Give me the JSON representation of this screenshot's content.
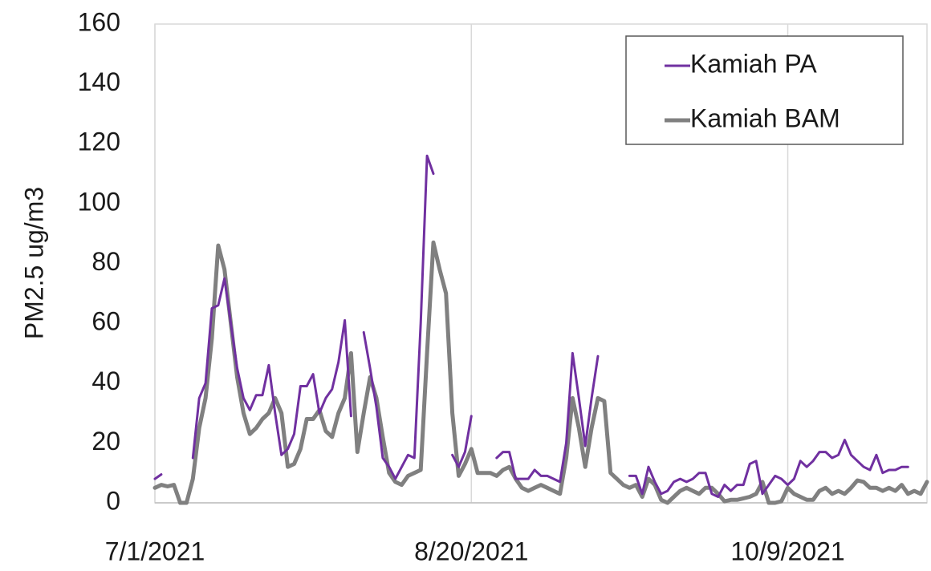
{
  "chart_data": {
    "type": "line",
    "ylabel": "PM2.5 ug/m3",
    "x": [
      "2021-07-01",
      "2021-07-02",
      "2021-07-03",
      "2021-07-04",
      "2021-07-05",
      "2021-07-06",
      "2021-07-07",
      "2021-07-08",
      "2021-07-09",
      "2021-07-10",
      "2021-07-11",
      "2021-07-12",
      "2021-07-13",
      "2021-07-14",
      "2021-07-15",
      "2021-07-16",
      "2021-07-17",
      "2021-07-18",
      "2021-07-19",
      "2021-07-20",
      "2021-07-21",
      "2021-07-22",
      "2021-07-23",
      "2021-07-24",
      "2021-07-25",
      "2021-07-26",
      "2021-07-27",
      "2021-07-28",
      "2021-07-29",
      "2021-07-30",
      "2021-07-31",
      "2021-08-01",
      "2021-08-02",
      "2021-08-03",
      "2021-08-04",
      "2021-08-05",
      "2021-08-06",
      "2021-08-07",
      "2021-08-08",
      "2021-08-09",
      "2021-08-10",
      "2021-08-11",
      "2021-08-12",
      "2021-08-13",
      "2021-08-14",
      "2021-08-15",
      "2021-08-16",
      "2021-08-17",
      "2021-08-18",
      "2021-08-19",
      "2021-08-20",
      "2021-08-21",
      "2021-08-22",
      "2021-08-23",
      "2021-08-24",
      "2021-08-25",
      "2021-08-26",
      "2021-08-27",
      "2021-08-28",
      "2021-08-29",
      "2021-08-30",
      "2021-08-31",
      "2021-09-01",
      "2021-09-02",
      "2021-09-03",
      "2021-09-04",
      "2021-09-05",
      "2021-09-06",
      "2021-09-07",
      "2021-09-08",
      "2021-09-09",
      "2021-09-10",
      "2021-09-11",
      "2021-09-12",
      "2021-09-13",
      "2021-09-14",
      "2021-09-15",
      "2021-09-16",
      "2021-09-17",
      "2021-09-18",
      "2021-09-19",
      "2021-09-20",
      "2021-09-21",
      "2021-09-22",
      "2021-09-23",
      "2021-09-24",
      "2021-09-25",
      "2021-09-26",
      "2021-09-27",
      "2021-09-28",
      "2021-09-29",
      "2021-09-30",
      "2021-10-01",
      "2021-10-02",
      "2021-10-03",
      "2021-10-04",
      "2021-10-05",
      "2021-10-06",
      "2021-10-07",
      "2021-10-08",
      "2021-10-09",
      "2021-10-10",
      "2021-10-11",
      "2021-10-12",
      "2021-10-13",
      "2021-10-14",
      "2021-10-15",
      "2021-10-16",
      "2021-10-17",
      "2021-10-18",
      "2021-10-19",
      "2021-10-20",
      "2021-10-21",
      "2021-10-22",
      "2021-10-23",
      "2021-10-24",
      "2021-10-25",
      "2021-10-26",
      "2021-10-27",
      "2021-10-28",
      "2021-10-29",
      "2021-10-30",
      "2021-10-31"
    ],
    "series": [
      {
        "name": "Kamiah PA",
        "color": "#7030a0",
        "values": [
          8,
          9.5,
          null,
          null,
          null,
          null,
          15,
          35,
          40,
          65,
          66,
          75,
          60,
          45,
          35,
          31,
          36,
          36,
          46,
          30,
          16,
          18,
          23,
          39,
          39,
          43,
          30,
          35,
          38,
          47,
          61,
          29,
          null,
          57,
          45,
          32,
          15,
          12,
          8,
          12,
          16,
          15,
          60,
          116,
          110,
          null,
          null,
          16,
          12,
          17,
          29,
          null,
          null,
          null,
          15,
          17,
          17,
          8,
          8,
          8,
          11,
          9,
          9,
          8,
          7,
          20,
          50,
          35,
          19,
          35,
          49,
          null,
          null,
          null,
          null,
          9,
          9,
          3,
          12,
          7,
          3,
          4,
          7,
          8,
          7,
          8,
          10,
          10,
          3,
          2,
          6,
          4,
          6,
          6,
          13,
          14,
          3,
          6,
          9,
          8,
          6,
          8,
          14,
          12,
          14,
          17,
          17,
          15,
          16,
          21,
          16,
          14,
          12,
          11,
          16,
          10,
          11,
          11,
          12,
          12,
          null,
          null,
          null
        ]
      },
      {
        "name": "Kamiah BAM",
        "color": "#808080",
        "values": [
          5,
          6,
          5.5,
          6,
          0,
          0,
          8,
          25,
          35,
          55,
          86,
          78,
          60,
          42,
          30,
          23,
          25,
          28,
          30,
          35,
          30,
          12,
          13,
          18,
          28,
          28,
          31,
          24,
          22,
          30,
          35,
          50,
          17,
          30,
          42,
          35,
          22,
          10,
          7,
          6,
          9,
          10,
          11,
          50,
          87,
          78,
          70,
          30,
          9,
          13,
          18,
          10,
          10,
          10,
          9,
          11,
          12,
          8,
          5,
          4,
          5,
          6,
          5,
          4,
          3,
          15,
          35,
          25,
          12,
          25,
          35,
          34,
          10,
          8,
          6,
          5,
          6,
          2,
          8,
          6,
          1,
          0,
          2,
          4,
          5,
          4,
          3,
          5,
          5,
          3,
          0.5,
          1,
          1,
          1.5,
          2,
          3,
          7,
          0,
          0,
          0.5,
          5,
          3,
          2,
          1,
          1,
          4,
          5,
          3,
          4,
          3,
          5,
          7.5,
          7,
          5,
          5,
          4,
          5,
          4,
          6,
          3,
          4,
          3,
          7
        ]
      }
    ],
    "xlim": [
      "2021-07-01",
      "2021-10-31"
    ],
    "xticks": [
      {
        "value": "2021-07-01",
        "label": "7/1/2021"
      },
      {
        "value": "2021-08-20",
        "label": "8/20/2021"
      },
      {
        "value": "2021-10-09",
        "label": "10/9/2021"
      }
    ],
    "ylim": [
      0,
      160
    ],
    "yticks": [
      0,
      20,
      40,
      60,
      80,
      100,
      120,
      140,
      160
    ],
    "grid": "x",
    "legend": "upper right"
  }
}
